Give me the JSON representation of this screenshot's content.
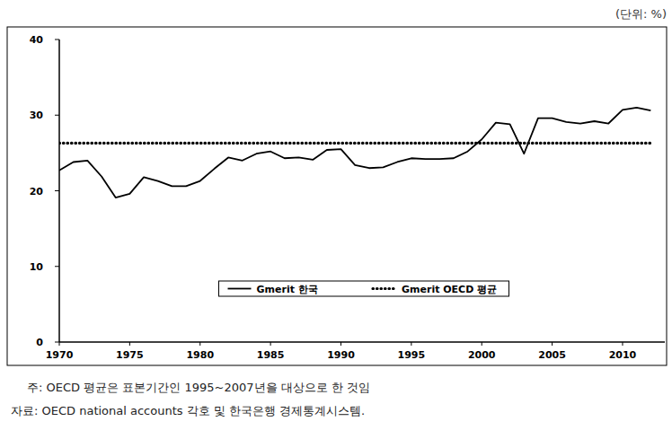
{
  "chart_data": {
    "type": "line",
    "unit": "(단위: %)",
    "notes": [
      "주: OECD 평균은 표본기간인 1995~2007년을 대상으로 한 것임",
      "자료: OECD national accounts 각호 및 한국은행 경제통계시스템."
    ],
    "x": [
      1970,
      1971,
      1972,
      1973,
      1974,
      1975,
      1976,
      1977,
      1978,
      1979,
      1980,
      1981,
      1982,
      1983,
      1984,
      1985,
      1986,
      1987,
      1988,
      1989,
      1990,
      1991,
      1992,
      1993,
      1994,
      1995,
      1996,
      1997,
      1998,
      1999,
      2000,
      2001,
      2002,
      2003,
      2004,
      2005,
      2006,
      2007,
      2008,
      2009,
      2010,
      2011,
      2012
    ],
    "series": [
      {
        "name": "Gmerit 한국",
        "color": "#000000",
        "line_style": "solid",
        "values": [
          22.7,
          23.8,
          24.0,
          21.9,
          19.1,
          19.6,
          21.8,
          21.3,
          20.6,
          20.6,
          21.3,
          22.9,
          24.4,
          24.0,
          24.9,
          25.2,
          24.3,
          24.4,
          24.1,
          25.4,
          25.5,
          23.4,
          23.0,
          23.1,
          23.8,
          24.3,
          24.2,
          24.2,
          24.3,
          25.2,
          26.8,
          29.0,
          28.8,
          24.9,
          29.6,
          29.6,
          29.1,
          28.9,
          29.2,
          28.9,
          30.7,
          31.0,
          30.6
        ]
      },
      {
        "name": "Gmerit OECD 평균",
        "color": "#000000",
        "line_style": "dotted",
        "values": [
          26.3,
          26.3,
          26.3,
          26.3,
          26.3,
          26.3,
          26.3,
          26.3,
          26.3,
          26.3,
          26.3,
          26.3,
          26.3,
          26.3,
          26.3,
          26.3,
          26.3,
          26.3,
          26.3,
          26.3,
          26.3,
          26.3,
          26.3,
          26.3,
          26.3,
          26.3,
          26.3,
          26.3,
          26.3,
          26.3,
          26.3,
          26.3,
          26.3,
          26.3,
          26.3,
          26.3,
          26.3,
          26.3,
          26.3,
          26.3,
          26.3,
          26.3,
          26.3
        ]
      }
    ],
    "xlim": [
      1970,
      2013
    ],
    "xticks": [
      1970,
      1975,
      1980,
      1985,
      1990,
      1995,
      2000,
      2005,
      2010
    ],
    "ylim": [
      0,
      40
    ],
    "yticks": [
      0,
      10,
      20,
      30,
      40
    ],
    "grid": false,
    "legend": "bottom"
  }
}
